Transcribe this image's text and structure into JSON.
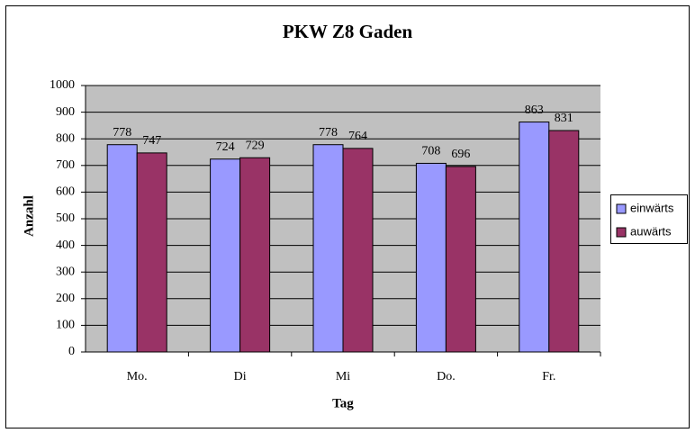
{
  "chart_data": {
    "type": "bar",
    "title": "PKW Z8 Gaden",
    "x_label": "Tag",
    "y_label": "Anzahl",
    "categories": [
      "Mo.",
      "Di",
      "Mi",
      "Do.",
      "Fr."
    ],
    "series": [
      {
        "name": "einwärts",
        "color": "#9999ff",
        "values": [
          778,
          724,
          778,
          708,
          863
        ]
      },
      {
        "name": "auwärts",
        "color": "#993366",
        "values": [
          747,
          729,
          764,
          696,
          831
        ]
      }
    ],
    "ylim": [
      0,
      1000
    ],
    "yticks": [
      0,
      100,
      200,
      300,
      400,
      500,
      600,
      700,
      800,
      900,
      1000
    ],
    "grid": true,
    "legend": "right"
  }
}
